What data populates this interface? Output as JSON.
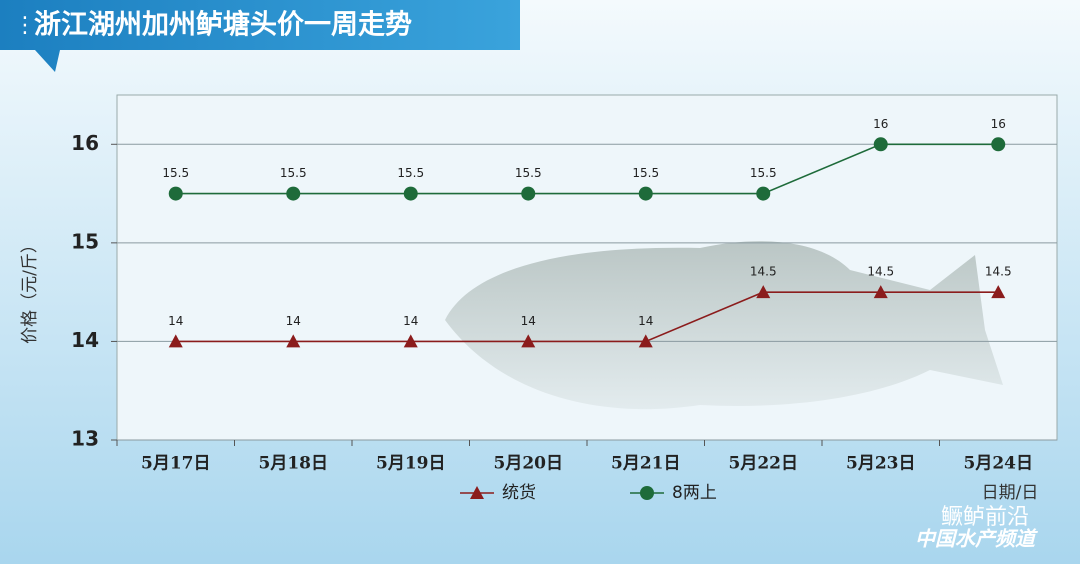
{
  "chart_data": {
    "type": "line",
    "title": "浙江湖州加州鲈塘头价一周走势",
    "y_label": "价格（元/斤）",
    "x_label": "日期/日",
    "categories": [
      "5月17日",
      "5月18日",
      "5月19日",
      "5月20日",
      "5月21日",
      "5月22日",
      "5月23日",
      "5月24日"
    ],
    "series": [
      {
        "name": "统货",
        "color": "#8b1c1c",
        "marker": "triangle",
        "values": [
          14,
          14,
          14,
          14,
          14,
          14.5,
          14.5,
          14.5
        ]
      },
      {
        "name": "8两上",
        "color": "#1e6b3a",
        "marker": "circle",
        "values": [
          15.5,
          15.5,
          15.5,
          15.5,
          15.5,
          15.5,
          16,
          16
        ]
      }
    ],
    "ylim": [
      13,
      16.5
    ],
    "yticks": [
      13,
      14,
      15,
      16
    ],
    "grid": true,
    "watermark": {
      "name": "鳜鲈前沿",
      "channel": "中国水产频道"
    }
  }
}
